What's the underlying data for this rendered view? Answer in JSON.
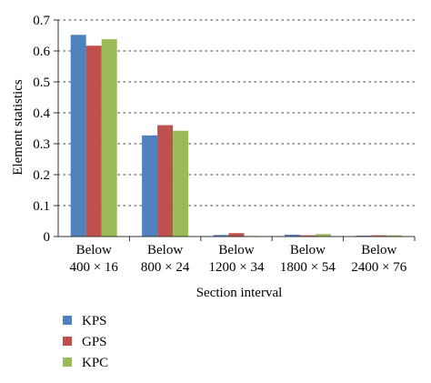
{
  "chart_data": {
    "type": "bar",
    "categories": [
      [
        "Below",
        "400 × 16"
      ],
      [
        "Below",
        "800 × 24"
      ],
      [
        "Below",
        "1200 × 34"
      ],
      [
        "Below",
        "1800 × 54"
      ],
      [
        "Below",
        "2400 × 76"
      ]
    ],
    "series": [
      {
        "name": "KPS",
        "color": "#4f81bd",
        "values": [
          0.652,
          0.327,
          0.005,
          0.006,
          0.003
        ]
      },
      {
        "name": "GPS",
        "color": "#c0504d",
        "values": [
          0.617,
          0.36,
          0.011,
          0.004,
          0.004
        ]
      },
      {
        "name": "KPC",
        "color": "#9bbb59",
        "values": [
          0.638,
          0.342,
          0.002,
          0.008,
          0.004
        ]
      }
    ],
    "xlabel": "Section interval",
    "ylabel": "Element statistics",
    "ylim": [
      0,
      0.7
    ],
    "yticks": [
      "0",
      "0.1",
      "0.2",
      "0.3",
      "0.4",
      "0.5",
      "0.6",
      "0.7"
    ],
    "grid": "horizontal dotted",
    "legend_position": "bottom-left"
  }
}
